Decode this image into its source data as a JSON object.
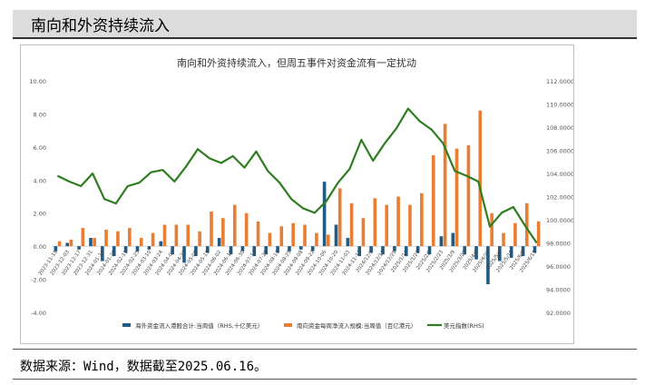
{
  "header": {
    "title": "南向和外资持续流入"
  },
  "footer": {
    "source": "数据来源：Wind，数据截至2025.06.16。"
  },
  "chart_data": {
    "type": "bar+line",
    "title": "南向和外资持续流入，但周五事件对资金流有一定扰动",
    "left_axis": {
      "ylim": [
        -4,
        10
      ],
      "ticks": [
        "10.00",
        "8.00",
        "6.00",
        "4.00",
        "2.00",
        "0.00",
        "-2.00",
        "-4.00"
      ]
    },
    "right_axis": {
      "ylim": [
        92,
        112
      ],
      "ticks": [
        "112.0000",
        "110.0000",
        "108.0000",
        "106.0000",
        "104.0000",
        "102.0000",
        "100.0000",
        "98.0000",
        "96.0000",
        "94.0000",
        "92.0000"
      ]
    },
    "categories": [
      "2023-11-19",
      "2023-12-03",
      "2023-12-17",
      "2023-12-31",
      "2024-01-14",
      "2024-01-28",
      "2024-02-11",
      "2024-02-25",
      "2024-03-10",
      "2024-03-24",
      "2024-04-07",
      "2024-04-21",
      "2024-05-05",
      "2024-05-19",
      "2024-06-02",
      "2024-06-16",
      "2024-06-30",
      "2024-07-14",
      "2024-07-28",
      "2024-08-11",
      "2024-08-25",
      "2024-09-08",
      "2024-09-22",
      "2024-10-06",
      "2024-10-20",
      "2024-11-03",
      "2024-11-17",
      "2024-12-01",
      "2024-12-15",
      "2024-12-29",
      "2025-01-12",
      "2025-01-26",
      "2025-02-09",
      "2025-02-23",
      "2025-03-09",
      "2025-03-23",
      "2025-04-06",
      "2025-04-20",
      "2025-05-04",
      "2025-05-18",
      "2025-06-01",
      "2025-06-15"
    ],
    "x_tick_labels": [
      "2023-11-19",
      "2023-12-03",
      "2023-12-17",
      "2023-12-31",
      "2024-01-14",
      "2024-01-28",
      "2024-02-11",
      "2024-02-25",
      "2024-03-10",
      "2024-03-24",
      "2024-04-07",
      "2024-04-21",
      "2024-05-05",
      "2024-05-19",
      "2024-06-02",
      "2024-06-16",
      "2024-06-30",
      "2024-07-14",
      "2024-07-28",
      "2024-08-11",
      "2024-08-25",
      "2024-09-08",
      "2024-09-22",
      "2024-10-06",
      "2024-10-20",
      "2024-11-03",
      "2024-11-17",
      "2024/12/1",
      "2024/12/15",
      "2024/12/29",
      "2025/1/12",
      "2025/1/26",
      "2025/2/9",
      "2025/2/23",
      "2025/3/9",
      "2025/3/23",
      "2025/4/6",
      "2025/4/20",
      "2025/5/4",
      "2025/5/18",
      "2025/6/1",
      "2025/6/15"
    ],
    "series": [
      {
        "name": "海外资金流入港股合计:当周值（RHS,十亿美元）",
        "axis": "left",
        "kind": "bar",
        "color": "#1f5b85",
        "values": [
          -0.3,
          0.2,
          -0.2,
          0.5,
          -0.9,
          -0.6,
          -0.4,
          -0.3,
          -0.2,
          0.3,
          -0.5,
          -1.0,
          -0.6,
          -0.4,
          0.5,
          -0.5,
          -0.3,
          -0.6,
          -0.5,
          -0.4,
          -0.3,
          -0.2,
          -0.3,
          3.9,
          1.3,
          0.5,
          -0.6,
          -0.4,
          -0.5,
          -0.3,
          -0.6,
          -0.4,
          -0.5,
          0.6,
          0.8,
          -0.5,
          -0.8,
          -2.3,
          -0.9,
          -0.7,
          -0.6,
          -0.4
        ]
      },
      {
        "name": "南向资金每周净流入规模:当周值（百亿港元）",
        "axis": "left",
        "kind": "bar",
        "color": "#ea7d32",
        "values": [
          0.3,
          0.4,
          1.1,
          0.5,
          1.0,
          0.9,
          1.1,
          0.5,
          0.8,
          1.3,
          1.3,
          1.3,
          0.9,
          2.1,
          1.7,
          2.5,
          2.0,
          1.5,
          0.8,
          1.2,
          1.4,
          1.3,
          0.8,
          0.7,
          3.5,
          2.6,
          1.7,
          2.9,
          2.5,
          3.0,
          2.5,
          3.2,
          5.5,
          7.4,
          5.9,
          6.1,
          8.2,
          2.0,
          0.8,
          1.4,
          2.6,
          1.5
        ]
      },
      {
        "name": "美元指数(RHS)",
        "axis": "right",
        "kind": "line",
        "color": "#2e7d1f",
        "values": [
          103.8,
          103.3,
          102.9,
          104.0,
          101.8,
          101.4,
          102.9,
          103.2,
          104.1,
          104.3,
          103.3,
          104.6,
          106.1,
          105.3,
          104.9,
          105.5,
          104.5,
          105.9,
          104.2,
          103.2,
          101.8,
          101.0,
          100.6,
          101.6,
          103.2,
          104.4,
          106.9,
          105.1,
          106.6,
          107.9,
          109.6,
          108.5,
          107.8,
          106.6,
          104.2,
          103.8,
          103.3,
          99.4,
          100.6,
          101.1,
          99.5,
          98.0
        ]
      }
    ]
  }
}
